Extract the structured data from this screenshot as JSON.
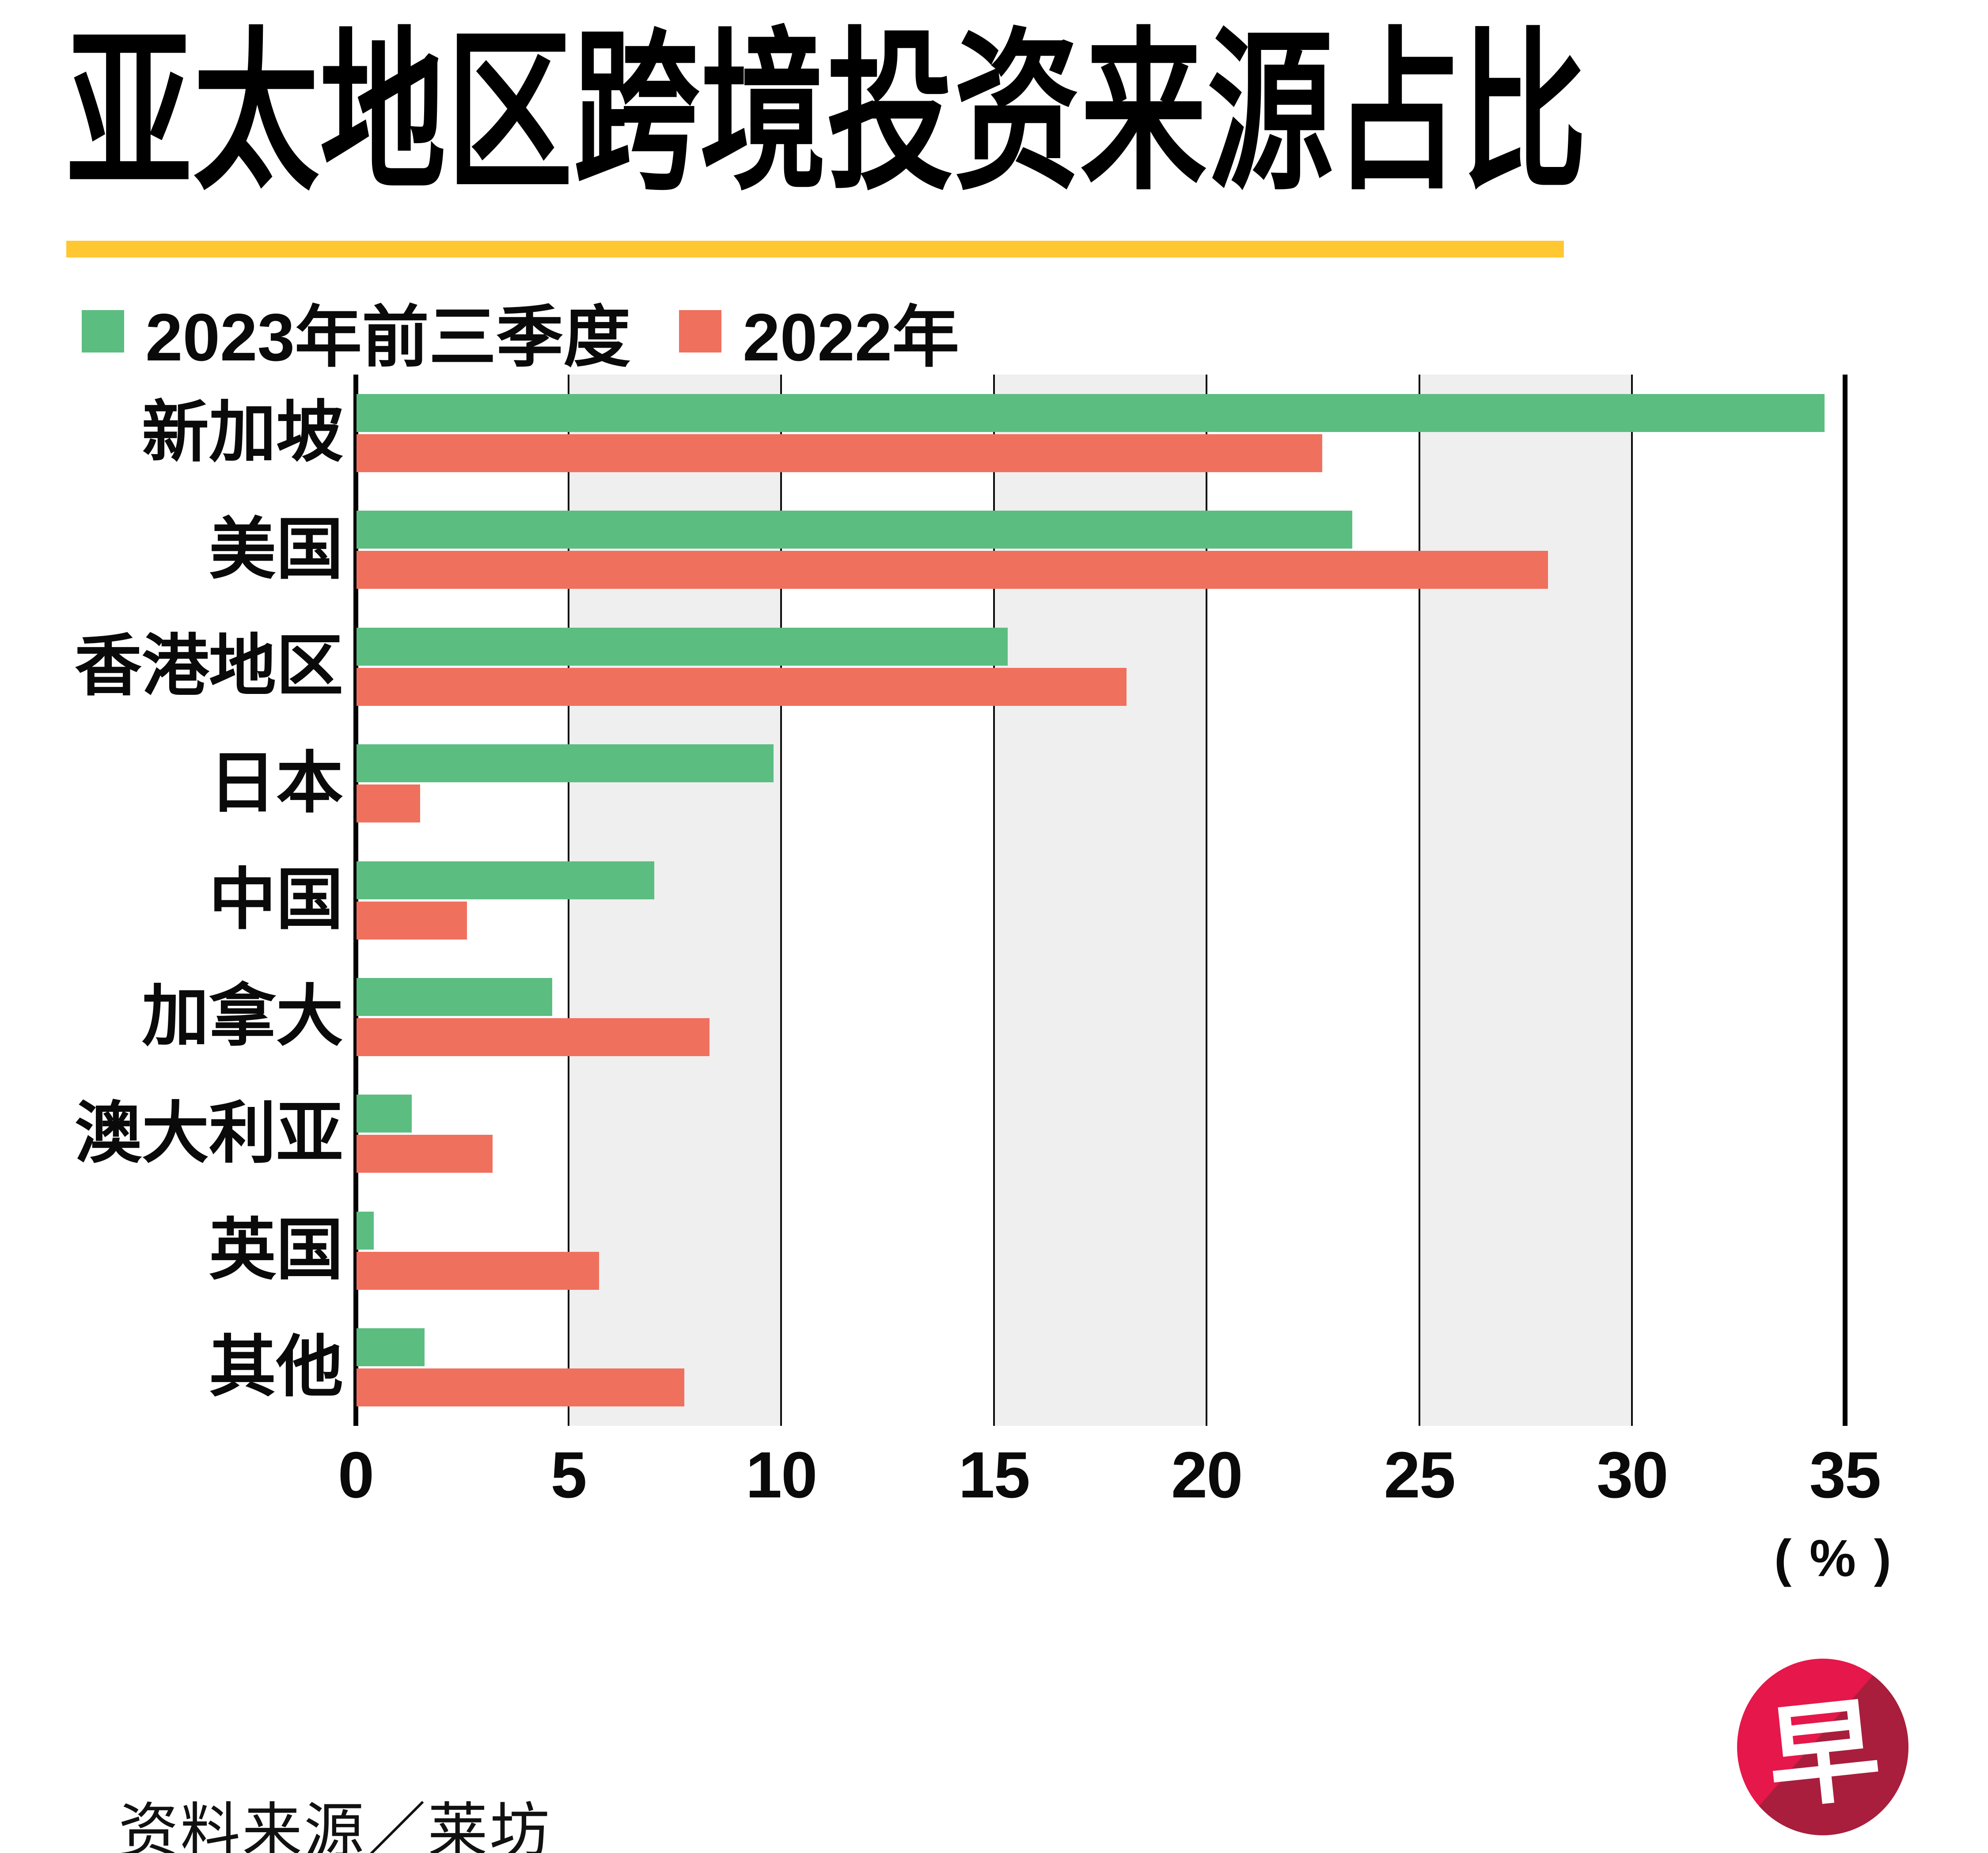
{
  "title": "亚太地区跨境投资来源占比",
  "source": "资料来源／莱坊",
  "axis": {
    "unit": "( % )"
  },
  "logo": {
    "character": "早"
  },
  "colors": {
    "green": "#5cbd81",
    "red": "#f0705e",
    "band_gray": "#efefef",
    "rule_yellow": "#ffc732",
    "logo_red_light": "#e6174a",
    "logo_red_dark": "#a81e3c"
  },
  "legend": [
    {
      "label": "2023年前三季度",
      "color": "#5cbd81"
    },
    {
      "label": "2022年",
      "color": "#f0705e"
    }
  ],
  "chart_data": {
    "type": "bar",
    "orientation": "horizontal",
    "title": "亚太地区跨境投资来源占比",
    "categories": [
      "新加坡",
      "美国",
      "香港地区",
      "日本",
      "中国",
      "加拿大",
      "澳大利亚",
      "英国",
      "其他"
    ],
    "series": [
      {
        "name": "2023年前三季度",
        "color": "#5cbd81",
        "values": [
          34.5,
          23.4,
          15.3,
          9.8,
          7.0,
          4.6,
          1.3,
          0.4,
          1.6
        ]
      },
      {
        "name": "2022年",
        "color": "#f0705e",
        "values": [
          22.7,
          28.0,
          18.1,
          1.5,
          2.6,
          8.3,
          3.2,
          5.7,
          7.7
        ]
      }
    ],
    "xlabel": "(%)",
    "ylabel": "",
    "xlim": [
      0,
      35
    ],
    "xticks": [
      0,
      5,
      10,
      15,
      20,
      25,
      30,
      35
    ],
    "grid": true,
    "band_shading": [
      [
        5,
        10
      ],
      [
        15,
        20
      ],
      [
        25,
        30
      ]
    ],
    "legend_position": "top-left"
  }
}
